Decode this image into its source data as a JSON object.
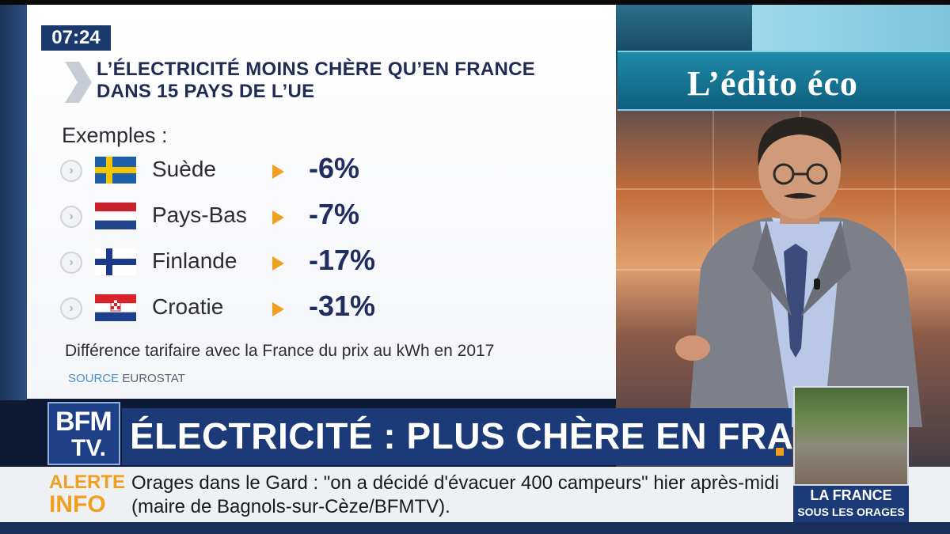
{
  "clock": "07:24",
  "headline": {
    "line1": "L’ÉLECTRICITÉ MOINS CHÈRE QU’EN FRANCE",
    "line2": "DANS 15 PAYS DE L’UE"
  },
  "examples_label": "Exemples :",
  "rows": [
    {
      "country": "Suède",
      "value": "-6%",
      "flag": "sweden-flag"
    },
    {
      "country": "Pays-Bas",
      "value": "-7%",
      "flag": "netherlands-flag"
    },
    {
      "country": "Finlande",
      "value": "-17%",
      "flag": "finland-flag"
    },
    {
      "country": "Croatie",
      "value": "-31%",
      "flag": "croatia-flag"
    }
  ],
  "note": "Différence tarifaire avec la France du prix au kWh en 2017",
  "source": {
    "label": "SOURCE",
    "name": "EUROSTAT"
  },
  "edito_title": "L’édito éco",
  "logo": {
    "line1": "BFM",
    "line2": "TV."
  },
  "banner": "ÉLECTRICITÉ : PLUS CHÈRE EN FRANCE ?",
  "alert": {
    "label1": "ALERTE",
    "label2": "INFO",
    "text": "Orages dans le Gard : \"on a décidé d'évacuer 400 campeurs\" hier après-midi (maire de Bagnols-sur-Cèze/BFMTV)."
  },
  "thumbnail": {
    "line1": "LA FRANCE",
    "line2": "SOUS LES ORAGES"
  },
  "colors": {
    "navy": "#1c3a78",
    "headline": "#1f2d55",
    "accent_orange": "#f0a01e",
    "studio_teal": "#1e8aa8"
  }
}
